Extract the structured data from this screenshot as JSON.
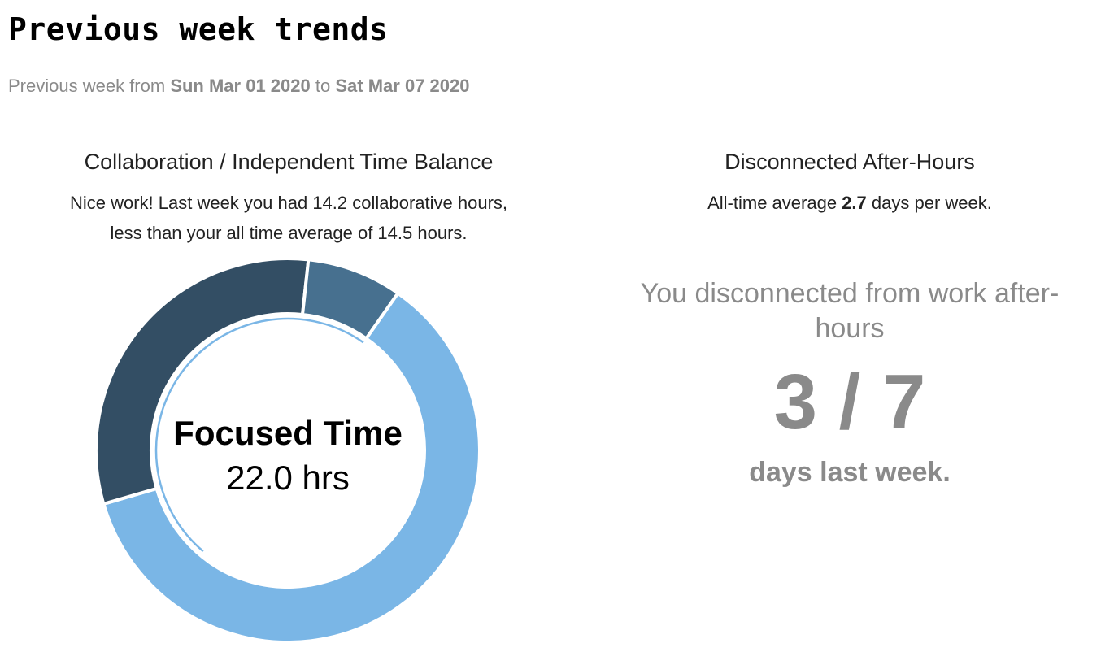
{
  "page": {
    "title": "Previous week trends",
    "range_prefix": "Previous week from",
    "range_start": "Sun Mar 01 2020",
    "range_mid": "to",
    "range_end": "Sat Mar 07 2020"
  },
  "collab_panel": {
    "title": "Collaboration / Independent Time Balance",
    "desc_line1": "Nice work! Last week you had 14.2 collaborative hours,",
    "desc_line2": "less than your all time average of 14.5 hours."
  },
  "after_hours_panel": {
    "title": "Disconnected After-Hours",
    "avg_prefix": "All-time average",
    "avg_value": "2.7",
    "avg_suffix": "days per week.",
    "message": "You disconnected from work after-hours",
    "count": "3 / 7",
    "footer": "days last week."
  },
  "chart_data": {
    "type": "pie",
    "center_label": "Focused Time",
    "center_value": "22.0 hrs",
    "slices": [
      {
        "value": 22.0,
        "color": "#7ab6e6"
      },
      {
        "value": 11.3,
        "color": "#334e64"
      },
      {
        "value": 2.9,
        "color": "#47708f"
      }
    ],
    "start_angle_deg": 35,
    "inner_ring_end_deg": 220
  }
}
